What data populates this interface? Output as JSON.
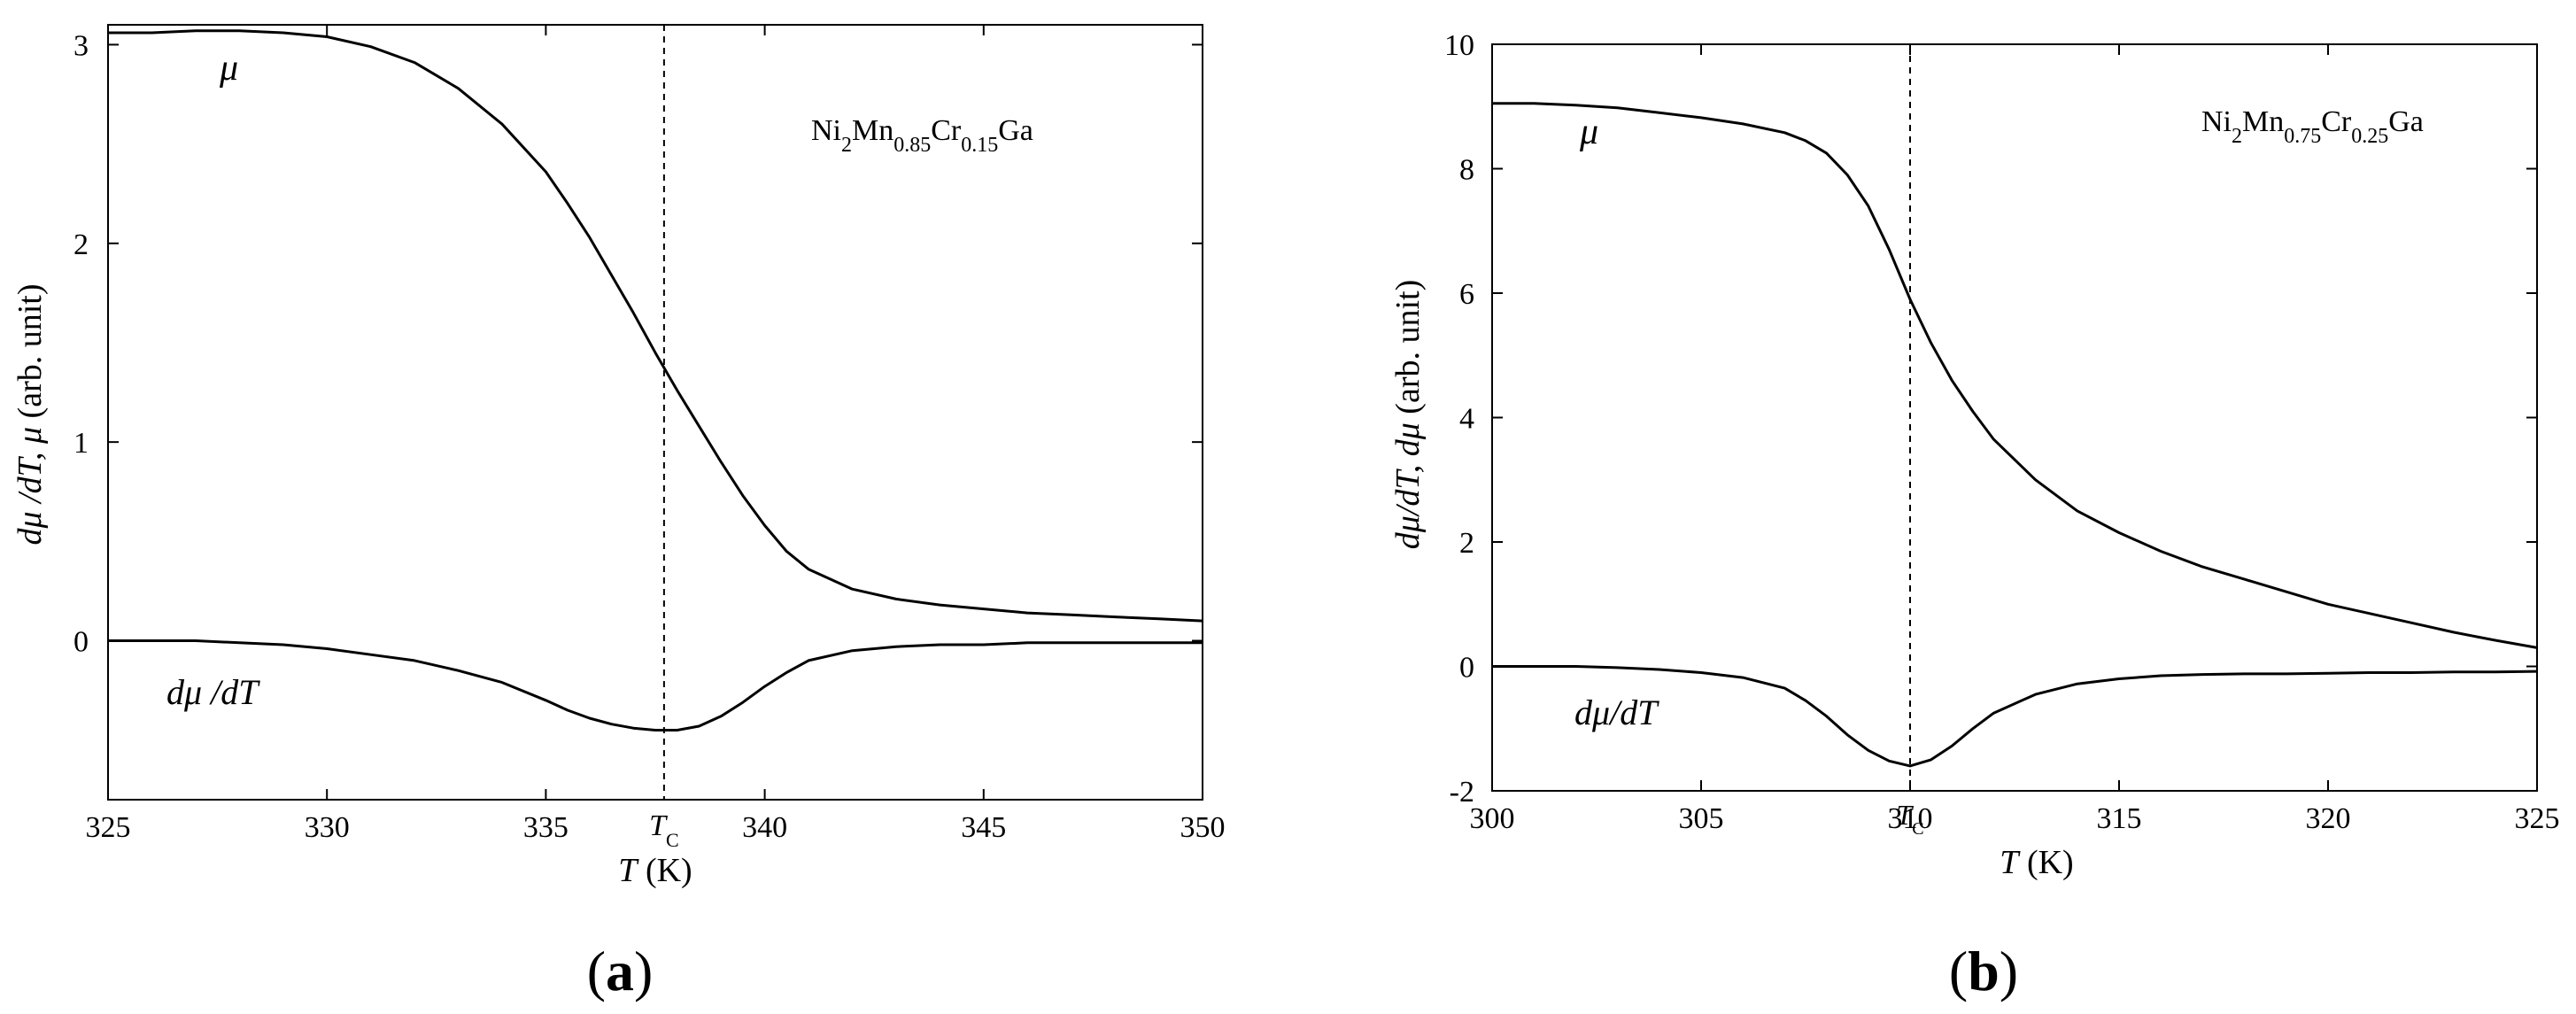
{
  "chart_data": [
    {
      "type": "line",
      "panel_label": "(a)",
      "panel_letter": "a",
      "compound": {
        "base1": "Ni",
        "sub1": "2",
        "base2": "Mn",
        "sub2": "0.85",
        "base3": "Cr",
        "sub3": "0.15",
        "base4": "Ga"
      },
      "xlabel": {
        "var": "T",
        "unit": "(K)"
      },
      "ylabel": {
        "part1": "dμ /dT, μ",
        "part2": " (arb. unit)"
      },
      "xlim": [
        325,
        350
      ],
      "ylim": [
        -0.8,
        3.1
      ],
      "xticks": [
        325,
        330,
        335,
        340,
        345,
        350
      ],
      "yticks": [
        0,
        1,
        2,
        3
      ],
      "tc": {
        "value": 337.7,
        "label": "T",
        "sub": "C"
      },
      "series": [
        {
          "name": "μ",
          "label": "μ",
          "x": [
            325,
            326,
            327,
            328,
            329,
            330,
            331,
            332,
            333,
            334,
            335,
            335.5,
            336,
            336.5,
            337,
            337.5,
            338,
            338.5,
            339,
            339.5,
            340,
            340.5,
            341,
            342,
            343,
            344,
            345,
            346,
            347,
            348,
            349,
            350
          ],
          "y": [
            3.06,
            3.06,
            3.07,
            3.07,
            3.06,
            3.04,
            2.99,
            2.91,
            2.78,
            2.6,
            2.36,
            2.2,
            2.03,
            1.84,
            1.65,
            1.45,
            1.26,
            1.08,
            0.9,
            0.73,
            0.58,
            0.45,
            0.36,
            0.26,
            0.21,
            0.18,
            0.16,
            0.14,
            0.13,
            0.12,
            0.11,
            0.1
          ]
        },
        {
          "name": "dμ /dT",
          "label": "dμ /dT",
          "x": [
            325,
            326,
            327,
            328,
            329,
            330,
            331,
            332,
            333,
            334,
            335,
            335.5,
            336,
            336.5,
            337,
            337.5,
            338,
            338.5,
            339,
            339.5,
            340,
            340.5,
            341,
            342,
            343,
            344,
            345,
            346,
            347,
            348,
            349,
            350
          ],
          "y": [
            0,
            0,
            0,
            -0.01,
            -0.02,
            -0.04,
            -0.07,
            -0.1,
            -0.15,
            -0.21,
            -0.3,
            -0.35,
            -0.39,
            -0.42,
            -0.44,
            -0.45,
            -0.45,
            -0.43,
            -0.38,
            -0.31,
            -0.23,
            -0.16,
            -0.1,
            -0.05,
            -0.03,
            -0.02,
            -0.02,
            -0.01,
            -0.01,
            -0.01,
            -0.01,
            -0.01
          ]
        }
      ]
    },
    {
      "type": "line",
      "panel_label": "(b)",
      "panel_letter": "b",
      "compound": {
        "base1": "Ni",
        "sub1": "2",
        "base2": "Mn",
        "sub2": "0.75",
        "base3": "Cr",
        "sub3": "0.25",
        "base4": "Ga"
      },
      "xlabel": {
        "var": "T",
        "unit": "(K)"
      },
      "ylabel": {
        "part1": "dμ/dT, dμ",
        "part2": " (arb. unit)"
      },
      "xlim": [
        300,
        325
      ],
      "ylim": [
        -2,
        10
      ],
      "xticks": [
        300,
        305,
        310,
        315,
        320,
        325
      ],
      "yticks": [
        -2,
        0,
        2,
        4,
        6,
        8,
        10
      ],
      "tc": {
        "value": 310,
        "label": "T",
        "sub": "C"
      },
      "series": [
        {
          "name": "μ",
          "label": "μ",
          "x": [
            300,
            301,
            302,
            303,
            304,
            305,
            306,
            307,
            307.5,
            308,
            308.5,
            309,
            309.5,
            310,
            310.5,
            311,
            311.5,
            312,
            313,
            314,
            315,
            316,
            317,
            318,
            319,
            320,
            321,
            322,
            323,
            324,
            325
          ],
          "y": [
            9.05,
            9.05,
            9.02,
            8.98,
            8.9,
            8.82,
            8.72,
            8.58,
            8.45,
            8.25,
            7.9,
            7.4,
            6.7,
            5.9,
            5.2,
            4.6,
            4.1,
            3.65,
            3.0,
            2.5,
            2.15,
            1.85,
            1.6,
            1.4,
            1.2,
            1.0,
            0.85,
            0.7,
            0.55,
            0.42,
            0.3
          ]
        },
        {
          "name": "dμ/dT",
          "label": "dμ/dT",
          "x": [
            300,
            301,
            302,
            303,
            304,
            305,
            306,
            307,
            307.5,
            308,
            308.5,
            309,
            309.5,
            310,
            310.5,
            311,
            311.5,
            312,
            313,
            314,
            315,
            316,
            317,
            318,
            319,
            320,
            321,
            322,
            323,
            324,
            325
          ],
          "y": [
            0,
            0,
            0,
            -0.02,
            -0.05,
            -0.1,
            -0.18,
            -0.35,
            -0.55,
            -0.8,
            -1.1,
            -1.35,
            -1.52,
            -1.6,
            -1.5,
            -1.28,
            -1.0,
            -0.75,
            -0.45,
            -0.28,
            -0.2,
            -0.15,
            -0.13,
            -0.12,
            -0.12,
            -0.11,
            -0.1,
            -0.1,
            -0.09,
            -0.09,
            -0.08
          ]
        }
      ]
    }
  ]
}
